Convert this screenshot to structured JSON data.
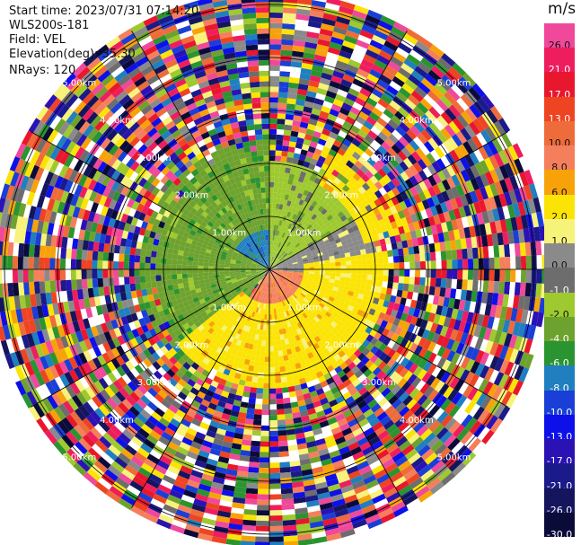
{
  "info": {
    "start_time": "Start time: 2023/07/31 07:14:20",
    "instrument": "WLS200s-181",
    "field": "Field: VEL",
    "elevation": "Elevation(deg): 35.30",
    "nrays": "NRays: 120"
  },
  "colorbar": {
    "unit": "m/s",
    "levels": [
      {
        "label": "26.0",
        "color": "#f0489a"
      },
      {
        "label": "21.0",
        "color": "#ee1e5e"
      },
      {
        "label": "17.0",
        "color": "#e8172e"
      },
      {
        "label": "13.0",
        "color": "#ee4422"
      },
      {
        "label": "10.0",
        "color": "#ee6b3a"
      },
      {
        "label": "8.0",
        "color": "#f57f5c"
      },
      {
        "label": "6.0",
        "color": "#f8a20a"
      },
      {
        "label": "2.0",
        "color": "#fbe405"
      },
      {
        "label": "1.0",
        "color": "#f7f27a"
      },
      {
        "label": "0.0",
        "color": "#8a8a8a"
      },
      {
        "label": "-1.0",
        "color": "#6d6d6d"
      },
      {
        "label": "-2.0",
        "color": "#9ec92f"
      },
      {
        "label": "-4.0",
        "color": "#6ea22e"
      },
      {
        "label": "-6.0",
        "color": "#2a9430"
      },
      {
        "label": "-8.0",
        "color": "#1f7fbf"
      },
      {
        "label": "-10.0",
        "color": "#1a3fd6"
      },
      {
        "label": "-13.0",
        "color": "#0d10e8"
      },
      {
        "label": "-17.0",
        "color": "#2a12b5"
      },
      {
        "label": "-21.0",
        "color": "#1a1a8a"
      },
      {
        "label": "-26.0",
        "color": "#15155e"
      },
      {
        "label": "-30.0",
        "color": "#0b0b3a"
      }
    ]
  },
  "chart_data": {
    "type": "heatmap",
    "projection": "polar-ppi",
    "field": "VEL",
    "nrays": 120,
    "range_rings_km": [
      {
        "value": 1,
        "label": "1.00km"
      },
      {
        "value": 2,
        "label": "2.00km"
      },
      {
        "value": 3,
        "label": "3.00km"
      },
      {
        "value": 4,
        "label": "4.00km"
      },
      {
        "value": 5,
        "label": "5.00km"
      }
    ],
    "max_range_km": 5.2,
    "azimuth_lines_deg": [
      0,
      30,
      60,
      90,
      120,
      150,
      180,
      210,
      240,
      270,
      300,
      330
    ],
    "pattern": {
      "description_regions": [
        {
          "az_from": 220,
          "az_to": 360,
          "r_from": 0,
          "r_to": 2.4,
          "level": "-4.0"
        },
        {
          "az_from": 0,
          "az_to": 60,
          "r_from": 0,
          "r_to": 2.0,
          "level": "-2.0"
        },
        {
          "az_from": 60,
          "az_to": 95,
          "r_from": 0,
          "r_to": 2.0,
          "level": "0.0"
        },
        {
          "az_from": 95,
          "az_to": 215,
          "r_from": 0,
          "r_to": 1.9,
          "level": "8.0"
        },
        {
          "az_from": 80,
          "az_to": 230,
          "r_from": 0.6,
          "r_to": 2.2,
          "level": "2.0"
        },
        {
          "az_from": 30,
          "az_to": 75,
          "r_from": 1.8,
          "r_to": 2.8,
          "level": "2.0"
        },
        {
          "az_from": 300,
          "az_to": 360,
          "r_from": 0,
          "r_to": 0.7,
          "level": "-8.0"
        }
      ],
      "noise_beyond_km": 2.6
    }
  }
}
